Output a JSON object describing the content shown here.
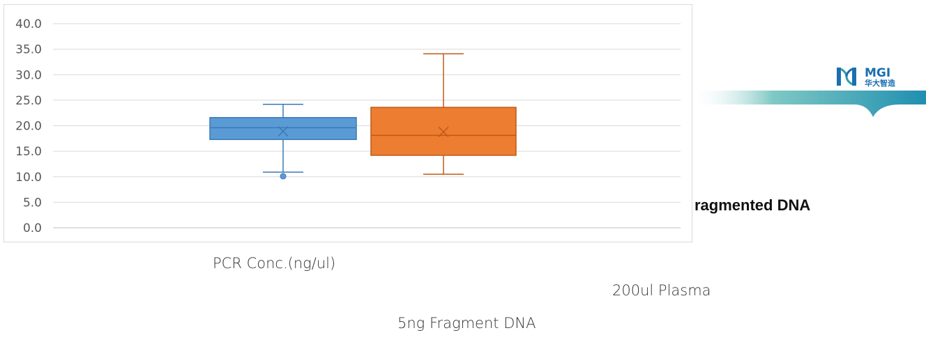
{
  "slide": {
    "heading_fragment": "ragmented DNA",
    "caption_pcr": "PCR Conc.(ng/ul)",
    "caption_plasma": "200ul Plasma",
    "caption_fragment": "5ng Fragment DNA",
    "band_color": "#2a9fa6"
  },
  "logo": {
    "brand": "MGI",
    "subtitle": "华大智造",
    "brand_color": "#1a6fb0",
    "icon": "mgi-dna-logo-icon"
  },
  "chart_data": {
    "type": "boxplot",
    "ylim": [
      0,
      40
    ],
    "yticks": [
      "0.0",
      "5.0",
      "10.0",
      "15.0",
      "20.0",
      "25.0",
      "30.0",
      "35.0",
      "40.0"
    ],
    "grid": true,
    "series": [
      {
        "color": "#5b9bd5",
        "edge": "#3a7ab8",
        "min": 10.9,
        "q1": 17.3,
        "median": 19.6,
        "q3": 21.6,
        "max": 24.2,
        "mean": 18.9,
        "outliers": [
          10.1
        ]
      },
      {
        "color": "#ed7d31",
        "edge": "#c05a17",
        "min": 10.5,
        "q1": 14.2,
        "median": 18.1,
        "q3": 23.6,
        "max": 34.1,
        "mean": 18.8,
        "outliers": []
      }
    ]
  }
}
